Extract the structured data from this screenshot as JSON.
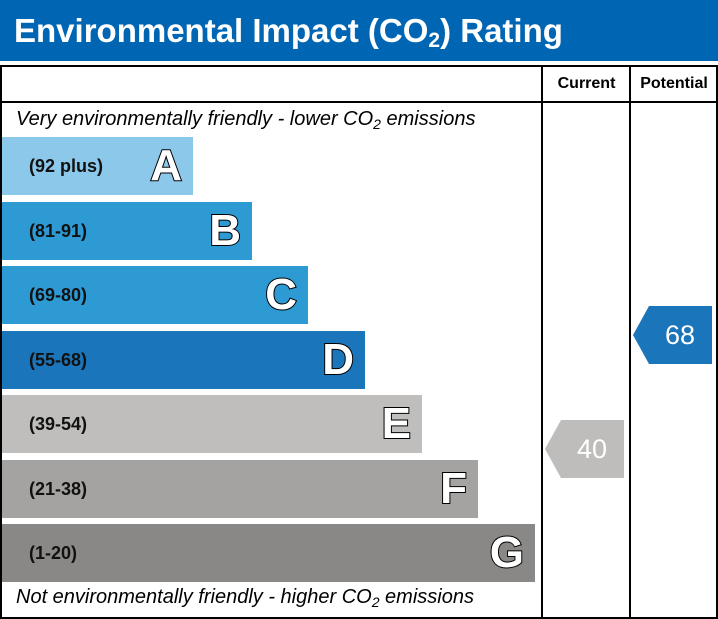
{
  "title_main": "Environmental Impact (CO",
  "title_sub": "2",
  "title_end": ") Rating",
  "columns": {
    "current": "Current",
    "potential": "Potential"
  },
  "top_note": {
    "pre": "Very environmentally friendly - lower CO",
    "sub": "2",
    "post": " emissions"
  },
  "bottom_note": {
    "pre": "Not environmentally friendly - higher CO",
    "sub": "2",
    "post": " emissions"
  },
  "chart_data": {
    "type": "bar",
    "categories": [
      "A",
      "B",
      "C",
      "D",
      "E",
      "F",
      "G"
    ],
    "bands": [
      {
        "letter": "A",
        "range": "(92 plus)",
        "color": "#8cc8ea"
      },
      {
        "letter": "B",
        "range": "(81-91)",
        "color": "#2d9ad4"
      },
      {
        "letter": "C",
        "range": "(69-80)",
        "color": "#2d9ad4"
      },
      {
        "letter": "D",
        "range": "(55-68)",
        "color": "#1b75bb"
      },
      {
        "letter": "E",
        "range": "(39-54)",
        "color": "#bfbebc"
      },
      {
        "letter": "F",
        "range": "(21-38)",
        "color": "#a4a3a1"
      },
      {
        "letter": "G",
        "range": "(1-20)",
        "color": "#898886"
      }
    ],
    "current": {
      "value": "40",
      "band": "E",
      "color": "#bebdbb"
    },
    "potential": {
      "value": "68",
      "band": "D",
      "color": "#1b75bb"
    }
  }
}
